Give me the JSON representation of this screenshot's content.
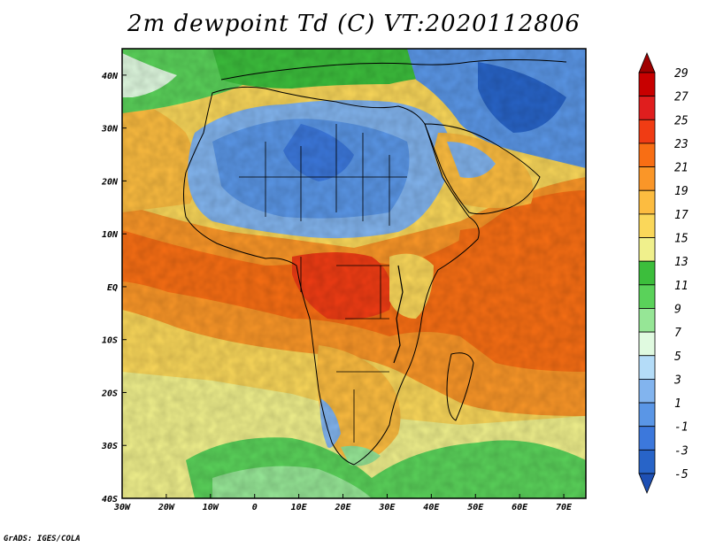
{
  "title": "2m dewpoint Td (C) VT:2020112806",
  "footer": "GrADS: IGES/COLA",
  "map": {
    "projection": "lat-lon",
    "lon_range": [
      -30,
      75
    ],
    "lat_range": [
      -40,
      45
    ],
    "x_ticks": [
      "30W",
      "20W",
      "10W",
      "0",
      "10E",
      "20E",
      "30E",
      "40E",
      "50E",
      "60E",
      "70E"
    ],
    "y_ticks": [
      "40N",
      "30N",
      "20N",
      "10N",
      "EQ",
      "10S",
      "20S",
      "30S",
      "40S"
    ]
  },
  "colorbar": {
    "labels": [
      "29",
      "27",
      "25",
      "23",
      "21",
      "19",
      "17",
      "15",
      "13",
      "11",
      "9",
      "7",
      "5",
      "3",
      "1",
      "-1",
      "-3",
      "-5"
    ],
    "colors": [
      "#a00000",
      "#c80000",
      "#e01e1e",
      "#f03c14",
      "#f86e14",
      "#fa9628",
      "#fcbc40",
      "#fad75a",
      "#f0f08c",
      "#3cbe3c",
      "#5ad25a",
      "#96e696",
      "#e0fae0",
      "#b4dcf8",
      "#82b4ee",
      "#5a96e6",
      "#3c78dc",
      "#2864c8",
      "#1e50b4"
    ]
  }
}
